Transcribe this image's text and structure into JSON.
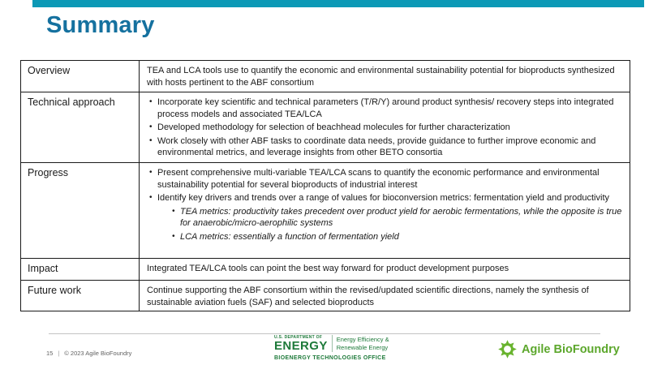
{
  "slide": {
    "title": "Summary",
    "accent_color": "#0c99b6",
    "title_color": "#15719f"
  },
  "table": {
    "rows": [
      {
        "label": "Overview",
        "type": "text",
        "text": "TEA and LCA tools use to quantify the economic and environmental sustainability potential for bioproducts synthesized with hosts pertinent to the ABF consortium"
      },
      {
        "label": "Technical approach",
        "type": "bullets",
        "bullets": [
          {
            "level": 1,
            "italic": false,
            "text": "Incorporate key scientific and technical parameters (T/R/Y) around product synthesis/ recovery steps into integrated process models and associated TEA/LCA"
          },
          {
            "level": 1,
            "italic": false,
            "text": "Developed methodology for selection of beachhead molecules for further characterization"
          },
          {
            "level": 1,
            "italic": false,
            "text": "Work closely with other ABF tasks to coordinate data needs, provide guidance to further improve economic and environmental metrics, and leverage insights from other BETO consortia"
          }
        ]
      },
      {
        "label": "Progress",
        "type": "bullets",
        "bullets": [
          {
            "level": 1,
            "italic": false,
            "text": "Present comprehensive multi-variable TEA/LCA scans to quantify the economic performance and environmental sustainability potential for several bioproducts of industrial interest"
          },
          {
            "level": 1,
            "italic": false,
            "text": "Identify key drivers and trends over a range of values for bioconversion metrics: fermentation yield and productivity"
          },
          {
            "level": 2,
            "italic": true,
            "text": "TEA metrics: productivity takes precedent over product yield for aerobic fermentations, while the opposite is true for anaerobic/micro-aerophilic systems"
          },
          {
            "level": 2,
            "italic": true,
            "text": "LCA metrics: essentially a function of fermentation yield"
          }
        ]
      },
      {
        "label": "Impact",
        "type": "text",
        "text": "Integrated TEA/LCA tools can point the best way forward for product development purposes"
      },
      {
        "label": "Future work",
        "type": "text",
        "text": "Continue supporting the ABF consortium within the revised/updated scientific directions, namely the synthesis of sustainable aviation fuels (SAF) and selected bioproducts"
      }
    ]
  },
  "footer": {
    "page_number": "15",
    "separator": "|",
    "copyright": "© 2023 Agile BioFoundry",
    "doe_logo": {
      "dept_line": "U.S. DEPARTMENT OF",
      "energy": "ENERGY",
      "office_lines": [
        "Energy Efficiency &",
        "Renewable Energy"
      ],
      "sub_office": "BIOENERGY TECHNOLOGIES OFFICE",
      "green": "#1e7a3a"
    },
    "abf_logo": {
      "icon": "sun-gear-icon",
      "text": "Agile BioFoundry",
      "green": "#68b32d"
    }
  }
}
